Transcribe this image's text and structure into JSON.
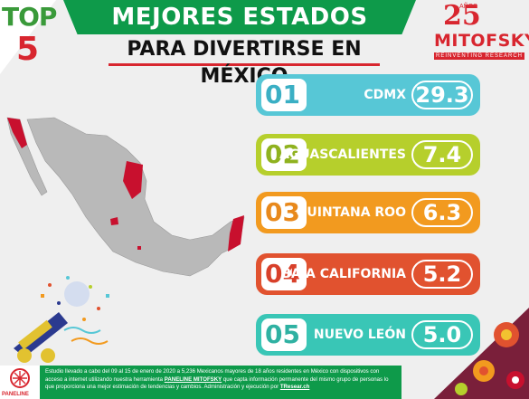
{
  "badge": {
    "top": "TOP",
    "num": "5"
  },
  "header": {
    "title": "MEJORES ESTADOS",
    "subtitle": "PARA DIVERTIRSE EN MÉXICO"
  },
  "logo": {
    "years": "25",
    "years_label": "AÑOS",
    "name": "MITOFSKY",
    "tagline": "REINVENTING RESEARCH"
  },
  "ranking": [
    {
      "rank": "01",
      "state": "CDMX",
      "value": "29.3",
      "color": "#57c7d6",
      "num_color": "#3aafc4"
    },
    {
      "rank": "02",
      "state": "AGUASCALIENTES",
      "value": "7.4",
      "color": "#b6cf2c",
      "num_color": "#8fb21f"
    },
    {
      "rank": "03",
      "state": "QUINTANA ROO",
      "value": "6.3",
      "color": "#f29a1f",
      "num_color": "#e8891c"
    },
    {
      "rank": "04",
      "state": "BAJA CALIFORNIA",
      "value": "5.2",
      "color": "#e1522f",
      "num_color": "#d8402a"
    },
    {
      "rank": "05",
      "state": "NUEVO LEÓN",
      "value": "5.0",
      "color": "#39c6b6",
      "num_color": "#2fb1a2"
    }
  ],
  "footer": {
    "text_1": "Estudio llevado a cabo del 09 al 15 de enero de 2020 a 5,236 Mexicanos mayores de 18 años residentes en México con dispositivos con acceso a internet utilizando nuestra herramienta ",
    "tool": "PANELINE MITOFSKY",
    "text_2": " que capta información permanente del mismo grupo de personas lo que proporciona una mejor estimación de tendencias y cambios. Administración y ejecución por ",
    "company": "TResear.ch",
    "logo_label": "PANELINE"
  },
  "colors": {
    "map_grey": "#b9b9b9",
    "map_red": "#c8102e",
    "green": "#0e9a4a",
    "red": "#d8262f"
  }
}
